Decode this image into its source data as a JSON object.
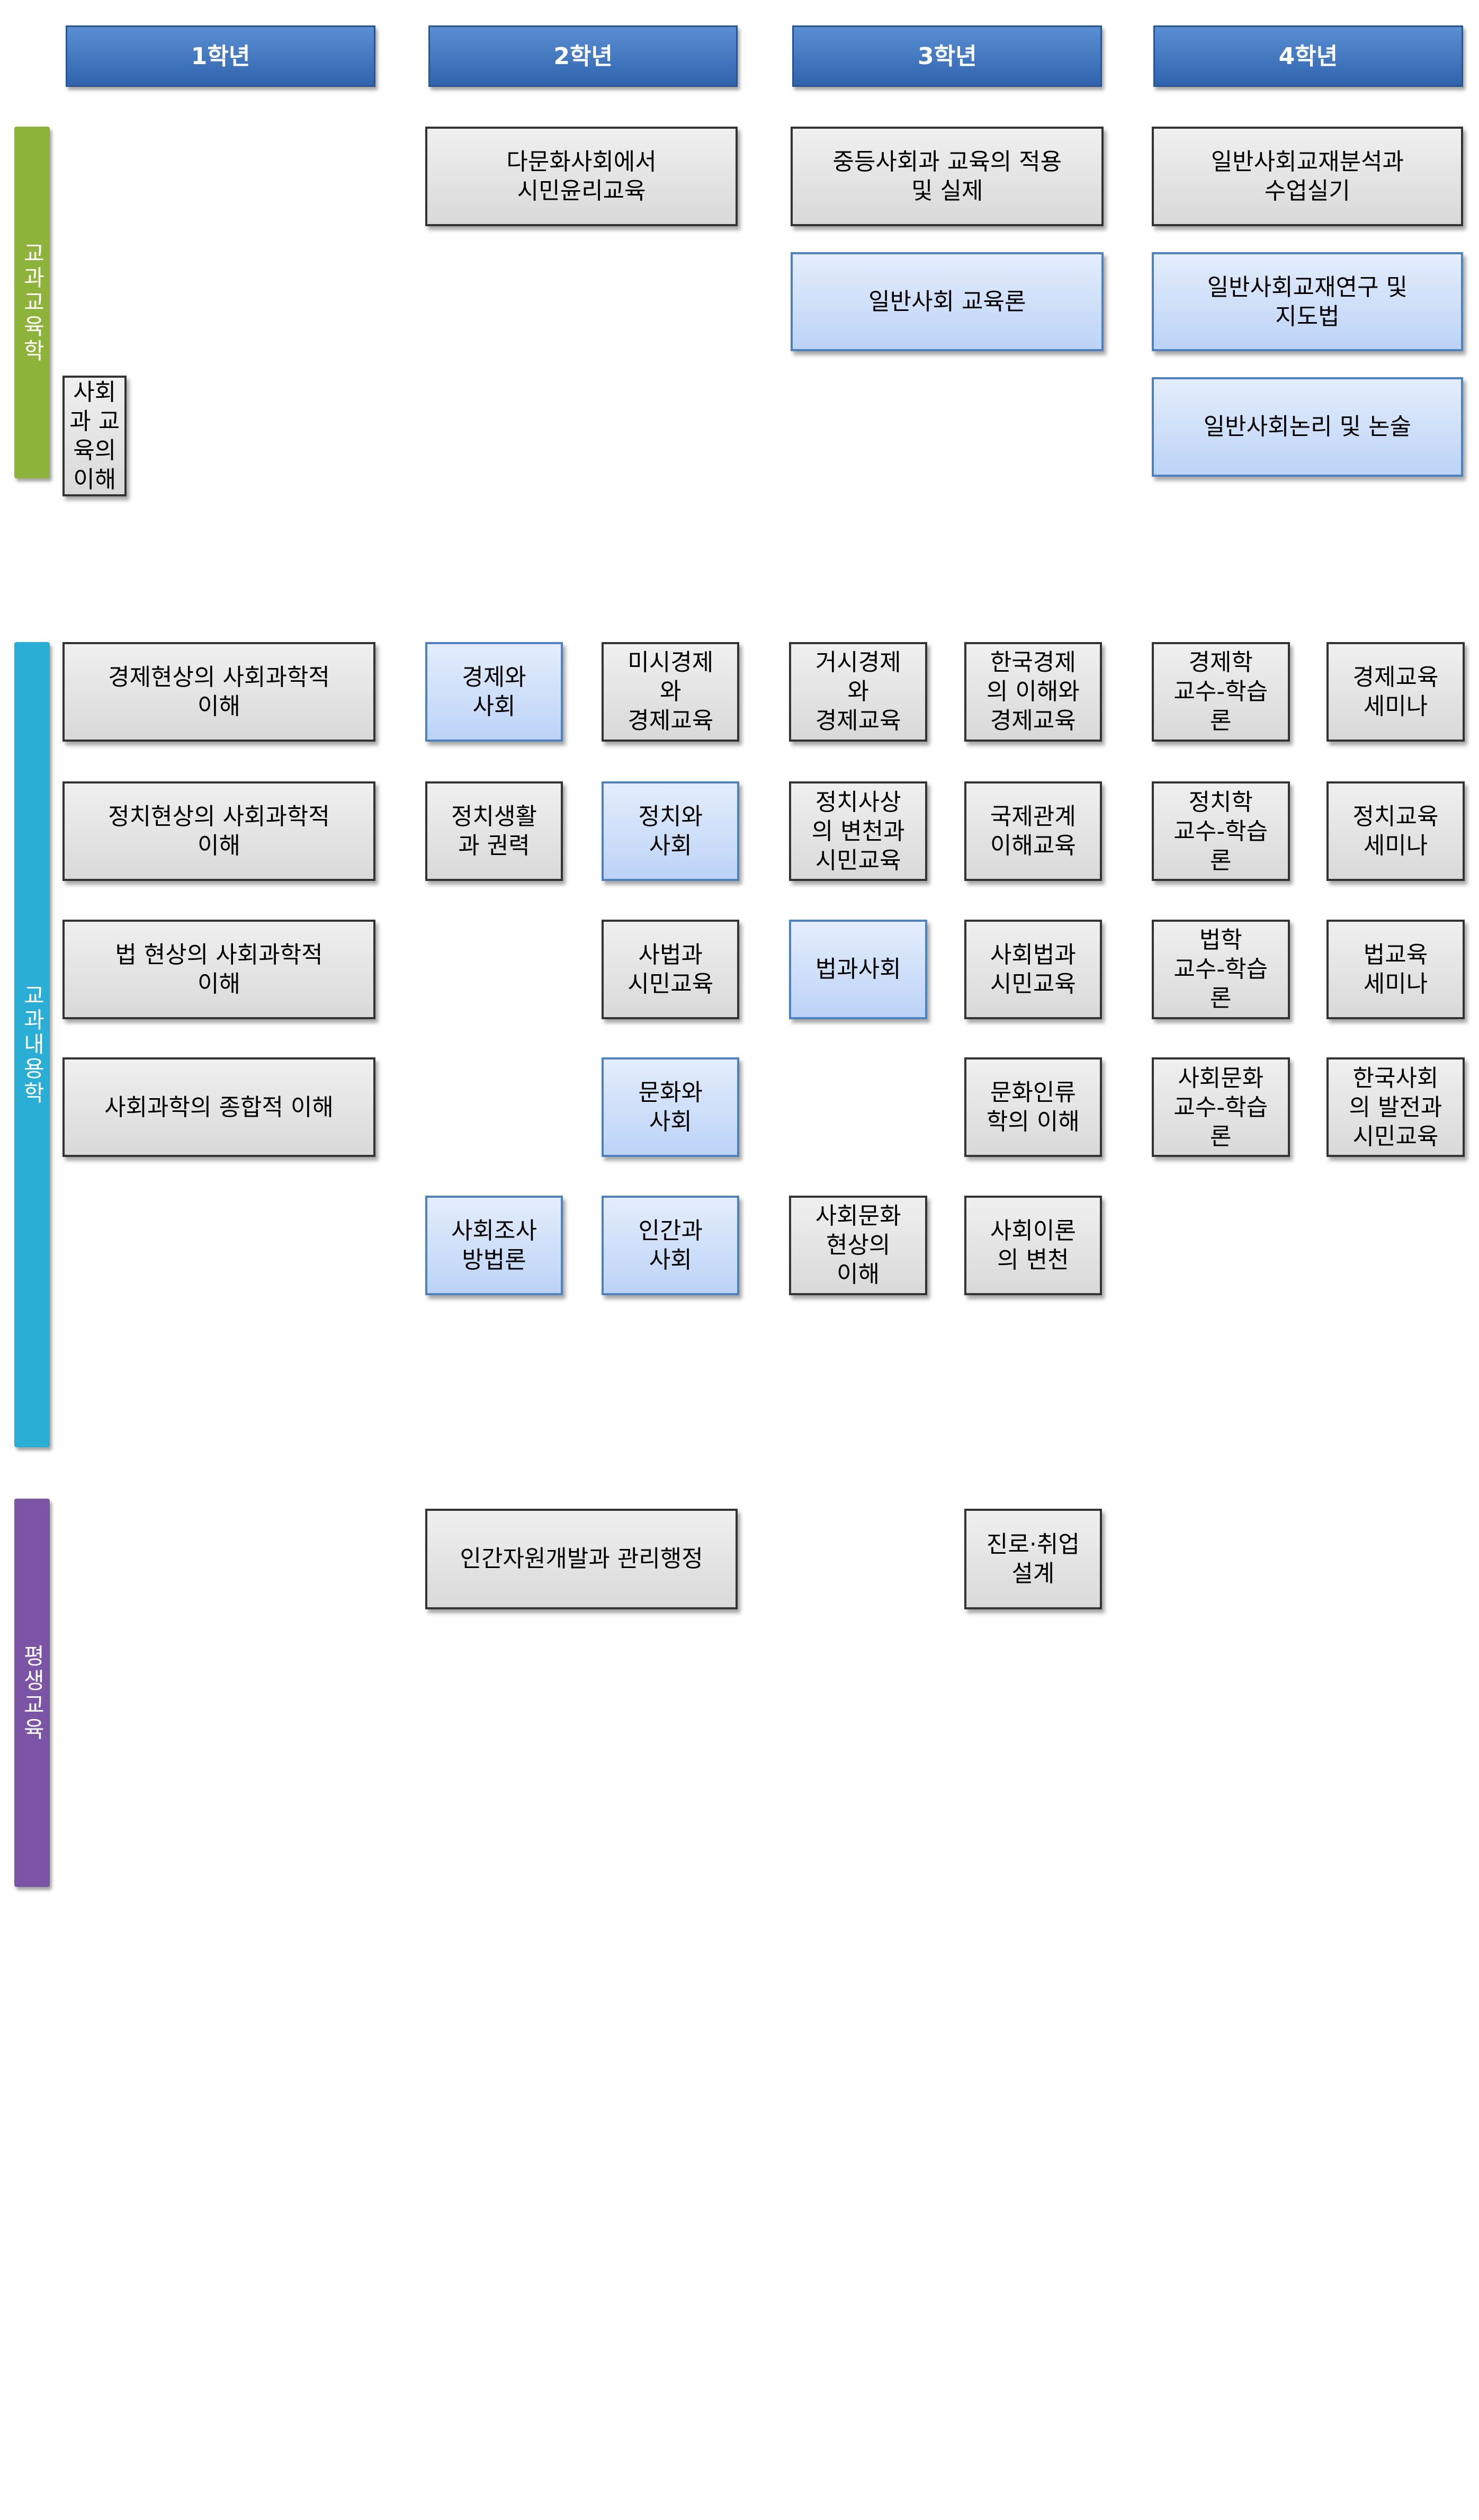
{
  "headers": [
    "1학년",
    "2학년",
    "3학년",
    "4학년"
  ],
  "sections": [
    {
      "label": "교과교육학",
      "color": "#8db33a",
      "courses": [
        {
          "text": "사회과 교육의 이해",
          "color": "#d9d9d9"
        },
        {
          "text": "다문화사회에서\n시민윤리교육",
          "color": "#d9d9d9"
        },
        {
          "text": "중등사회과 교육의 적용\n및 실제",
          "color": "#d9d9d9"
        },
        {
          "text": "일반사회교재분석과\n수업실기",
          "color": "#d9d9d9"
        },
        {
          "text": "일반사회 교육론",
          "color": "#bcd3f7"
        },
        {
          "text": "일반사회교재연구 및\n지도법",
          "color": "#bcd3f7"
        },
        {
          "text": "일반사회논리 및 논술",
          "color": "#bcd3f7"
        }
      ]
    },
    {
      "label": "교과내용학",
      "color": "#2aaed6",
      "courses": [
        {
          "text": "경제현상의 사회과학적\n이해",
          "color": "#d9d9d9"
        },
        {
          "text": "경제와\n사회",
          "color": "#bcd3f7"
        },
        {
          "text": "미시경제\n와\n경제교육",
          "color": "#d9d9d9"
        },
        {
          "text": "거시경제\n와\n경제교육",
          "color": "#d9d9d9"
        },
        {
          "text": "한국경제\n의 이해와\n경제교육",
          "color": "#d9d9d9"
        },
        {
          "text": "경제학\n교수-학습\n론",
          "color": "#d9d9d9"
        },
        {
          "text": "경제교육\n세미나",
          "color": "#d9d9d9"
        },
        {
          "text": "정치현상의 사회과학적\n이해",
          "color": "#d9d9d9"
        },
        {
          "text": "정치생활\n과 권력",
          "color": "#d9d9d9"
        },
        {
          "text": "정치와\n사회",
          "color": "#bcd3f7"
        },
        {
          "text": "정치사상\n의 변천과\n시민교육",
          "color": "#d9d9d9"
        },
        {
          "text": "국제관계\n이해교육",
          "color": "#d9d9d9"
        },
        {
          "text": "정치학\n교수-학습\n론",
          "color": "#d9d9d9"
        },
        {
          "text": "정치교육\n세미나",
          "color": "#d9d9d9"
        },
        {
          "text": "법 현상의 사회과학적\n이해",
          "color": "#d9d9d9"
        },
        {
          "text": "사법과\n시민교육",
          "color": "#d9d9d9"
        },
        {
          "text": "법과사회",
          "color": "#bcd3f7"
        },
        {
          "text": "사회법과\n시민교육",
          "color": "#d9d9d9"
        },
        {
          "text": "법학\n교수-학습\n론",
          "color": "#d9d9d9"
        },
        {
          "text": "법교육\n세미나",
          "color": "#d9d9d9"
        },
        {
          "text": "사회과학의 종합적 이해",
          "color": "#d9d9d9"
        },
        {
          "text": "문화와\n사회",
          "color": "#bcd3f7"
        },
        {
          "text": "문화인류\n학의 이해",
          "color": "#d9d9d9"
        },
        {
          "text": "사회문화\n교수-학습\n론",
          "color": "#d9d9d9"
        },
        {
          "text": "한국사회\n의 발전과\n시민교육",
          "color": "#d9d9d9"
        },
        {
          "text": "사회조사\n방법론",
          "color": "#bcd3f7"
        },
        {
          "text": "인간과\n사회",
          "color": "#bcd3f7"
        },
        {
          "text": "사회문화\n현상의\n이해",
          "color": "#d9d9d9"
        },
        {
          "text": "사회이론\n의 변천",
          "color": "#d9d9d9"
        }
      ]
    },
    {
      "label": "평생교육",
      "color": "#7b54a6",
      "courses": [
        {
          "text": "인간자원개발과 관리행정",
          "color": "#d9d9d9"
        },
        {
          "text": "진로·취업\n설계",
          "color": "#d9d9d9"
        }
      ]
    }
  ]
}
